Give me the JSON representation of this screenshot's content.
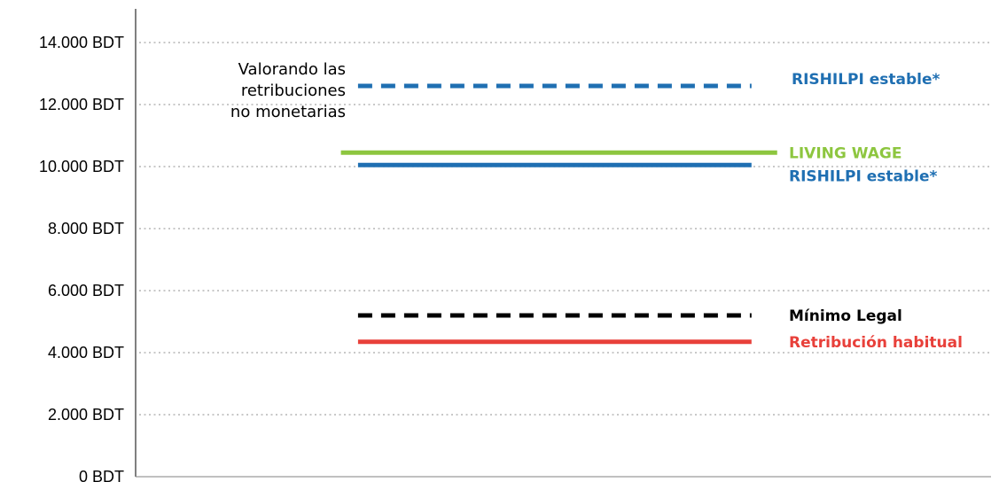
{
  "chart_data": {
    "type": "line",
    "title": "",
    "xlabel": "",
    "ylabel": "",
    "ylim": [
      0,
      15000
    ],
    "y_ticks": [
      0,
      2000,
      4000,
      6000,
      8000,
      10000,
      12000,
      14000
    ],
    "y_tick_labels": [
      "0 BDT",
      "2.000 BDT",
      "4.000 BDT",
      "6.000 BDT",
      "8.000 BDT",
      "10.000 BDT",
      "12.000 BDT",
      "14.000 BDT"
    ],
    "grid": "horizontal dotted",
    "legend": "none",
    "series": [
      {
        "name": "RISHILPI estable*",
        "value": 12600,
        "color": "#1f6fb2",
        "style": "dashed",
        "x_range": [
          0.26,
          0.72
        ]
      },
      {
        "name": "LIVING WAGE",
        "value": 10450,
        "color": "#8dc63f",
        "style": "solid",
        "x_range": [
          0.24,
          0.75
        ]
      },
      {
        "name": "RISHILPI estable*",
        "value": 10050,
        "color": "#1f6fb2",
        "style": "solid",
        "x_range": [
          0.26,
          0.72
        ]
      },
      {
        "name": "Mínimo Legal",
        "value": 5200,
        "color": "#000000",
        "style": "dashed",
        "x_range": [
          0.26,
          0.72
        ]
      },
      {
        "name": "Retribución habitual",
        "value": 4350,
        "color": "#e8403a",
        "style": "solid",
        "x_range": [
          0.26,
          0.72
        ]
      }
    ],
    "annotations": [
      {
        "text_lines": [
          "Valorando las",
          "retribuciones",
          "no monetarias"
        ],
        "attached_to_series": 0
      }
    ]
  }
}
